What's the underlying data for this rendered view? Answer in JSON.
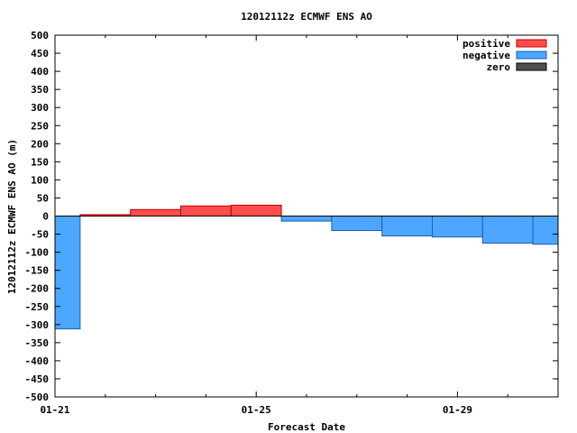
{
  "chart_data": {
    "type": "bar",
    "title": "12012112z ECMWF ENS AO",
    "xlabel": "Forecast Date",
    "ylabel": "12012112z ECMWF ENS AO (m)",
    "ylim": [
      -500,
      500
    ],
    "y_ticks": [
      500,
      450,
      400,
      350,
      300,
      250,
      200,
      150,
      100,
      50,
      0,
      -50,
      -100,
      -150,
      -200,
      -250,
      -300,
      -350,
      -400,
      -450,
      -500
    ],
    "x_range_days": [
      0,
      10
    ],
    "x_major_ticks": [
      {
        "day": 0,
        "label": "01-21"
      },
      {
        "day": 4,
        "label": "01-25"
      },
      {
        "day": 8,
        "label": "01-29"
      }
    ],
    "x_minor_ticks": [
      1,
      2,
      3,
      5,
      6,
      7,
      9
    ],
    "bars": [
      {
        "start": 0,
        "end": 0.5,
        "value": -312
      },
      {
        "start": 0.5,
        "end": 1.5,
        "value": 4
      },
      {
        "start": 1.5,
        "end": 2.5,
        "value": 18
      },
      {
        "start": 2.5,
        "end": 3.5,
        "value": 28
      },
      {
        "start": 3.5,
        "end": 4.5,
        "value": 30
      },
      {
        "start": 4.5,
        "end": 5.5,
        "value": -14
      },
      {
        "start": 5.5,
        "end": 6.5,
        "value": -40
      },
      {
        "start": 6.5,
        "end": 7.5,
        "value": -55
      },
      {
        "start": 7.5,
        "end": 8.5,
        "value": -58
      },
      {
        "start": 8.5,
        "end": 9.5,
        "value": -75
      },
      {
        "start": 9.5,
        "end": 10,
        "value": -78
      }
    ],
    "legend": {
      "placement": "top-right",
      "items": [
        {
          "label": "positive",
          "color": "#ff4d4d",
          "edge": "#c00000"
        },
        {
          "label": "negative",
          "color": "#4da6ff",
          "edge": "#1f5fa8"
        },
        {
          "label": "zero",
          "color": "#505050",
          "edge": "#000000"
        }
      ]
    },
    "colors": {
      "positive": "#ff4d4d",
      "positive_edge": "#c00000",
      "negative": "#4da6ff",
      "negative_edge": "#1f5fa8",
      "zero_line": "#000000",
      "frame": "#000000"
    },
    "grid": false
  }
}
